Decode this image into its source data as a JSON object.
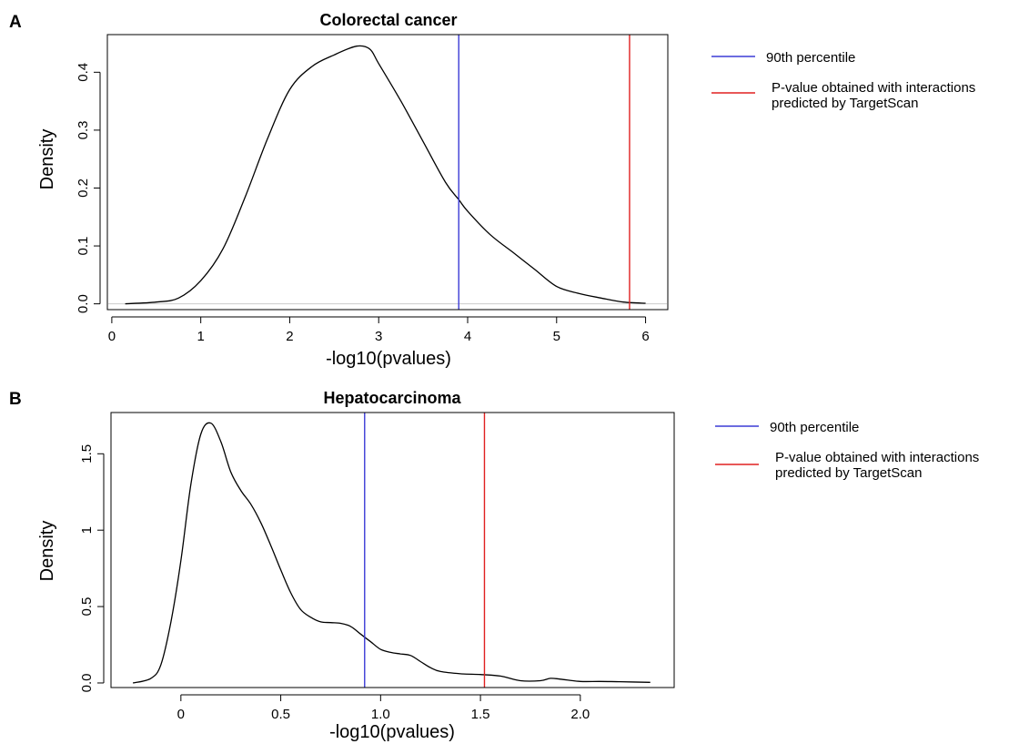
{
  "chart_data": [
    {
      "panel_label": "A",
      "type": "line",
      "title": "Colorectal cancer",
      "xlabel": "-log10(pvalues)",
      "ylabel": "Density",
      "xlim": [
        -0.05,
        6.25
      ],
      "ylim": [
        -0.01,
        0.465
      ],
      "xticks": [
        0,
        1,
        2,
        3,
        4,
        5,
        6
      ],
      "xtick_labels": [
        "0",
        "1",
        "2",
        "3",
        "4",
        "5",
        "6"
      ],
      "yticks": [
        0.0,
        0.1,
        0.2,
        0.3,
        0.4
      ],
      "ytick_labels": [
        "0.0",
        "0.1",
        "0.2",
        "0.3",
        "0.4"
      ],
      "baseline": true,
      "series": [
        {
          "color": "#000000",
          "x": [
            0.15,
            0.5,
            0.75,
            1.0,
            1.25,
            1.5,
            1.75,
            2.0,
            2.25,
            2.5,
            2.75,
            2.9,
            3.0,
            3.25,
            3.5,
            3.75,
            3.9,
            4.0,
            4.25,
            4.5,
            4.75,
            5.0,
            5.25,
            5.5,
            5.75,
            6.0
          ],
          "y": [
            0.0,
            0.003,
            0.01,
            0.04,
            0.095,
            0.185,
            0.285,
            0.37,
            0.41,
            0.43,
            0.445,
            0.44,
            0.415,
            0.35,
            0.28,
            0.21,
            0.18,
            0.16,
            0.12,
            0.09,
            0.06,
            0.03,
            0.018,
            0.01,
            0.003,
            0.001
          ]
        }
      ],
      "vlines": [
        {
          "x": 3.9,
          "color": "#3b3bd6",
          "label": "90th percentile"
        },
        {
          "x": 5.82,
          "color": "#e02020",
          "label": "P-value obtained with interactions predicted by TargetScan"
        }
      ],
      "legend": {
        "placement": "right",
        "entries": [
          {
            "color": "#3b3bd6",
            "lines": [
              "90th percentile"
            ]
          },
          {
            "color": "#e02020",
            "lines": [
              "P-value obtained with interactions",
              "predicted by TargetScan"
            ]
          }
        ]
      }
    },
    {
      "panel_label": "B",
      "type": "line",
      "title": "Hepatocarcinoma",
      "xlabel": "-log10(pvalues)",
      "ylabel": "Density",
      "xlim": [
        -0.35,
        2.47
      ],
      "ylim": [
        -0.03,
        1.77
      ],
      "xticks": [
        0,
        0.5,
        1.0,
        1.5,
        2.0
      ],
      "xtick_labels": [
        "0",
        "0.5",
        "1.0",
        "1.5",
        "2.0"
      ],
      "yticks": [
        0.0,
        0.5,
        1.0,
        1.5
      ],
      "ytick_labels": [
        "0.0",
        "0.5",
        "1",
        "1.5"
      ],
      "baseline": false,
      "series": [
        {
          "color": "#000000",
          "x": [
            -0.24,
            -0.15,
            -0.1,
            -0.05,
            0.0,
            0.05,
            0.1,
            0.15,
            0.2,
            0.25,
            0.3,
            0.35,
            0.4,
            0.45,
            0.5,
            0.55,
            0.6,
            0.65,
            0.7,
            0.75,
            0.8,
            0.85,
            0.9,
            0.95,
            1.0,
            1.05,
            1.1,
            1.15,
            1.2,
            1.25,
            1.3,
            1.4,
            1.5,
            1.6,
            1.7,
            1.8,
            1.85,
            1.9,
            2.0,
            2.1,
            2.2,
            2.35
          ],
          "y": [
            0.0,
            0.03,
            0.12,
            0.4,
            0.8,
            1.3,
            1.63,
            1.7,
            1.58,
            1.38,
            1.26,
            1.17,
            1.05,
            0.9,
            0.74,
            0.59,
            0.48,
            0.43,
            0.4,
            0.395,
            0.39,
            0.37,
            0.32,
            0.27,
            0.22,
            0.2,
            0.19,
            0.18,
            0.14,
            0.1,
            0.075,
            0.06,
            0.055,
            0.045,
            0.015,
            0.015,
            0.03,
            0.025,
            0.01,
            0.01,
            0.008,
            0.004
          ]
        }
      ],
      "vlines": [
        {
          "x": 0.92,
          "color": "#3b3bd6",
          "label": "90th percentile"
        },
        {
          "x": 1.52,
          "color": "#e02020",
          "label": "P-value obtained with interactions predicted by TargetScan"
        }
      ],
      "legend": {
        "placement": "right",
        "entries": [
          {
            "color": "#3b3bd6",
            "lines": [
              "90th percentile"
            ]
          },
          {
            "color": "#e02020",
            "lines": [
              "P-value obtained with interactions",
              "predicted by TargetScan"
            ]
          }
        ]
      }
    }
  ]
}
